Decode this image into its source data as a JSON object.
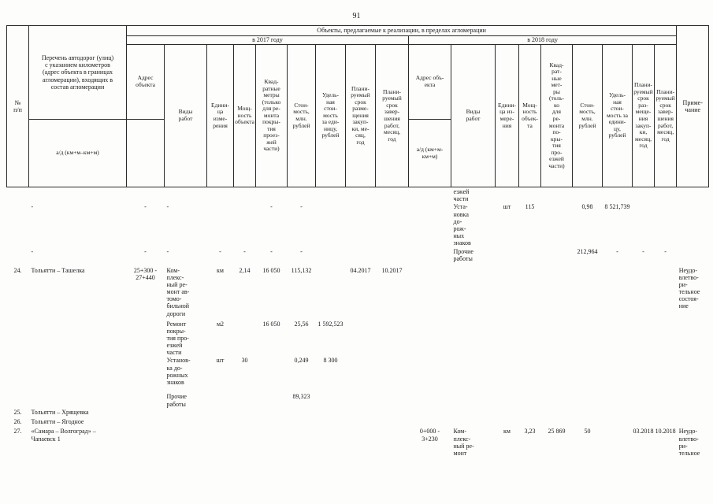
{
  "page_number": "91",
  "table": {
    "header": {
      "no": "№\nп/п",
      "roads_list": "Перечень автодорог (улиц)\nс указанием километров\n(адрес объекта в границах\nагломерации), входящих в\nсостав агломерации",
      "roads_list_sub": "а/д (км+м–км+м)",
      "objects_band": "Объекты, предлагаемые к реализации, в пределах агломерации",
      "year_2017": "в 2017 году",
      "year_2018": "в 2018 году",
      "note": "Приме-\nчание",
      "cols_2017": {
        "address": "Адрес\nобъекта",
        "works": "Виды\nработ",
        "unit": "Едини-\nца\nизме-\nрения",
        "capacity": "Мощ-\nность\nобъекта",
        "sqm": "Квад-\nратные\nметры\n(только\nдля ре-\nмонта\nпокры-\nтия\nпроез-\nжей\nчасти)",
        "cost": "Стои-\nмость,\nмлн.\nрублей",
        "unit_cost": "Удель-\nная\nстои-\nмость\nза еди-\nницу,\nрублей",
        "purchase_term": "Плани-\nруемый\nсрок\nразме-\nщения\nзакуп-\nки, ме-\nсяц,\nгод",
        "completion_term": "Плани-\nруемый\nсрок\nзавер-\nшения\nработ,\nмесяц,\nгод"
      },
      "cols_2018": {
        "address": "Адрес объ-\nекта",
        "address_sub": "а/д (км+м-\nкм+м)",
        "works": "Виды\nработ",
        "unit": "Едини-\nца из-\nмере-\nния",
        "capacity": "Мощ-\nность\nобъек-\nта",
        "sqm": "Квад-\nрат-\nные\nмет-\nры\n(толь-\nко\nдля\nре-\nмонта\nпо-\nкры-\nтия\nпро-\nезжей\nчасти)",
        "cost": "Стои-\nмость,\nмлн.\nрублей",
        "unit_cost": "Удель-\nная\nстои-\nмость за\nедини-\nцу,\nрублей",
        "purchase_term": "Плани-\nруемый\nсрок\nраз-\nмеще-\nния\nзакуп-\nки,\nмесяц,\nгод",
        "completion_term": "Плани-\nруемый\nсрок\nзавер-\nшения\nработ,\nмесяц,\nгод"
      }
    },
    "rows": [
      {
        "cells": {
          "13": "езжей\nчасти"
        }
      },
      {
        "cells": {
          "2": "-",
          "3": "-",
          "4": "-",
          "7": "-",
          "8": "-",
          "13": "Уста-\nновка\nдо-\nрож-\nных\nзнаков",
          "14": "шт",
          "15": "115",
          "17": "0,98",
          "18": "8 521,739"
        }
      },
      {
        "cells": {
          "2": "-",
          "3": "-",
          "4": "-",
          "5": "-",
          "6": "-",
          "7": "-",
          "8": "-",
          "13": "Прочие\nработы",
          "17": "212,964",
          "18": "-",
          "19": "-",
          "20": "-"
        }
      },
      {
        "cells": {
          "1": "24.",
          "2": "Тольятти – Ташелка",
          "3": "25+300 -\n27+440",
          "4": "Ком-\nплекс-\nный ре-\nмонт ав-\nтомо-\nбильной\nдороги",
          "5": "км",
          "6": "2,14",
          "7": "16 050",
          "8": "115,132",
          "10": "04.2017",
          "11": "10.2017",
          "21": "Неудо-\nвлетво-\nри-\nтельное\nсостоя-\nние"
        }
      },
      {
        "cells": {
          "4": "Ремонт\nпокры-\nтия про-\nезжей\nчасти",
          "5": "м2",
          "7": "16 050",
          "8": "25,56",
          "9": "1 592,523"
        }
      },
      {
        "cells": {
          "4": "Установ-\nка до-\nрожных\nзнаков",
          "5": "шт",
          "6": "30",
          "8": "0,249",
          "9": "8 300"
        }
      },
      {
        "cells": {
          "4": "Прочие\nработы",
          "8": "89,323"
        }
      },
      {
        "cells": {
          "1": "25.",
          "2": "Тольятти – Хрящевка"
        }
      },
      {
        "cells": {
          "1": "26.",
          "2": "Тольятти – Ягодное"
        }
      },
      {
        "cells": {
          "1": "27.",
          "2": "«Самара – Волгоград» –\nЧапаевск 1",
          "12": "0+000 -\n3+230",
          "13": "Ком-\nплекс-\nный ре-\nмонт",
          "14": "км",
          "15": "3,23",
          "16": "25 869",
          "17": "50",
          "19": "03.2018",
          "20": "10.2018",
          "21": "Неудо-\nвлетво-\nри-\nтельное"
        }
      }
    ]
  }
}
